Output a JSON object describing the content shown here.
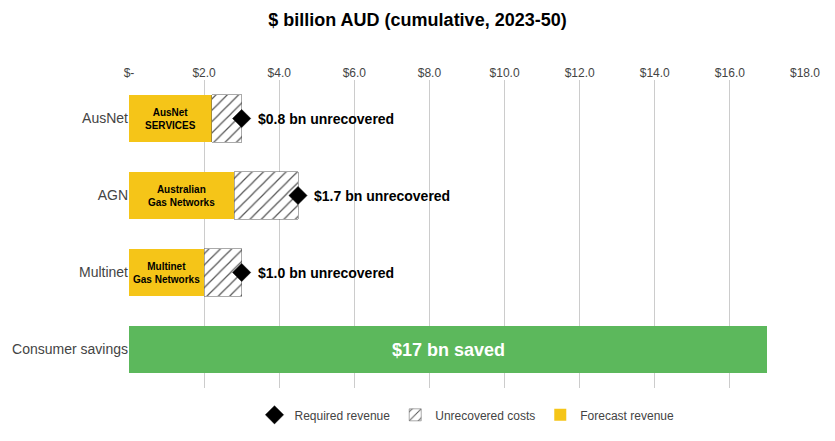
{
  "chart_data": {
    "type": "bar",
    "orientation": "horizontal",
    "stacked": true,
    "title": "$ billion AUD (cumulative, 2023-50)",
    "categories": [
      "AusNet",
      "AGN",
      "Multinet",
      "Consumer savings"
    ],
    "series": [
      {
        "name": "Forecast revenue",
        "colors": [
          "#F5C518",
          "#F5C518",
          "#F5C518",
          "#5CB85C"
        ],
        "values": [
          2.2,
          2.8,
          2.0,
          17.0
        ]
      },
      {
        "name": "Unrecovered costs",
        "color": "#ffffff",
        "values": [
          0.8,
          1.7,
          1.0,
          null
        ],
        "value_labels": [
          "$0.8 bn unrecovered",
          "$1.7 bn unrecovered",
          "$1.0 bn unrecovered",
          null
        ]
      },
      {
        "name": "Required revenue",
        "type": "scatter",
        "marker": "diamond",
        "color": "#000000",
        "values": [
          3.0,
          4.5,
          3.0,
          null
        ]
      }
    ],
    "annotations": [
      {
        "text": "AusNet\nSERVICES",
        "category": "AusNet"
      },
      {
        "text": "Australian\nGas Networks",
        "category": "AGN"
      },
      {
        "text": "Multinet\nGas Networks",
        "category": "Multinet"
      },
      {
        "text": "$17 bn saved",
        "category": "Consumer savings",
        "color": "#ffffff"
      }
    ],
    "data_labels": true,
    "xlim": [
      0,
      18.0
    ],
    "xticks": [
      {
        "value": 0,
        "label": "$-"
      },
      {
        "value": 2.0,
        "label": "$2.0"
      },
      {
        "value": 4.0,
        "label": "$4.0"
      },
      {
        "value": 6.0,
        "label": "$6.0"
      },
      {
        "value": 8.0,
        "label": "$8.0"
      },
      {
        "value": 10.0,
        "label": "$10.0"
      },
      {
        "value": 12.0,
        "label": "$12.0"
      },
      {
        "value": 14.0,
        "label": "$14.0"
      },
      {
        "value": 16.0,
        "label": "$16.0"
      },
      {
        "value": 18.0,
        "label": "$18.0"
      }
    ],
    "grid": true,
    "legend": "bottom"
  }
}
